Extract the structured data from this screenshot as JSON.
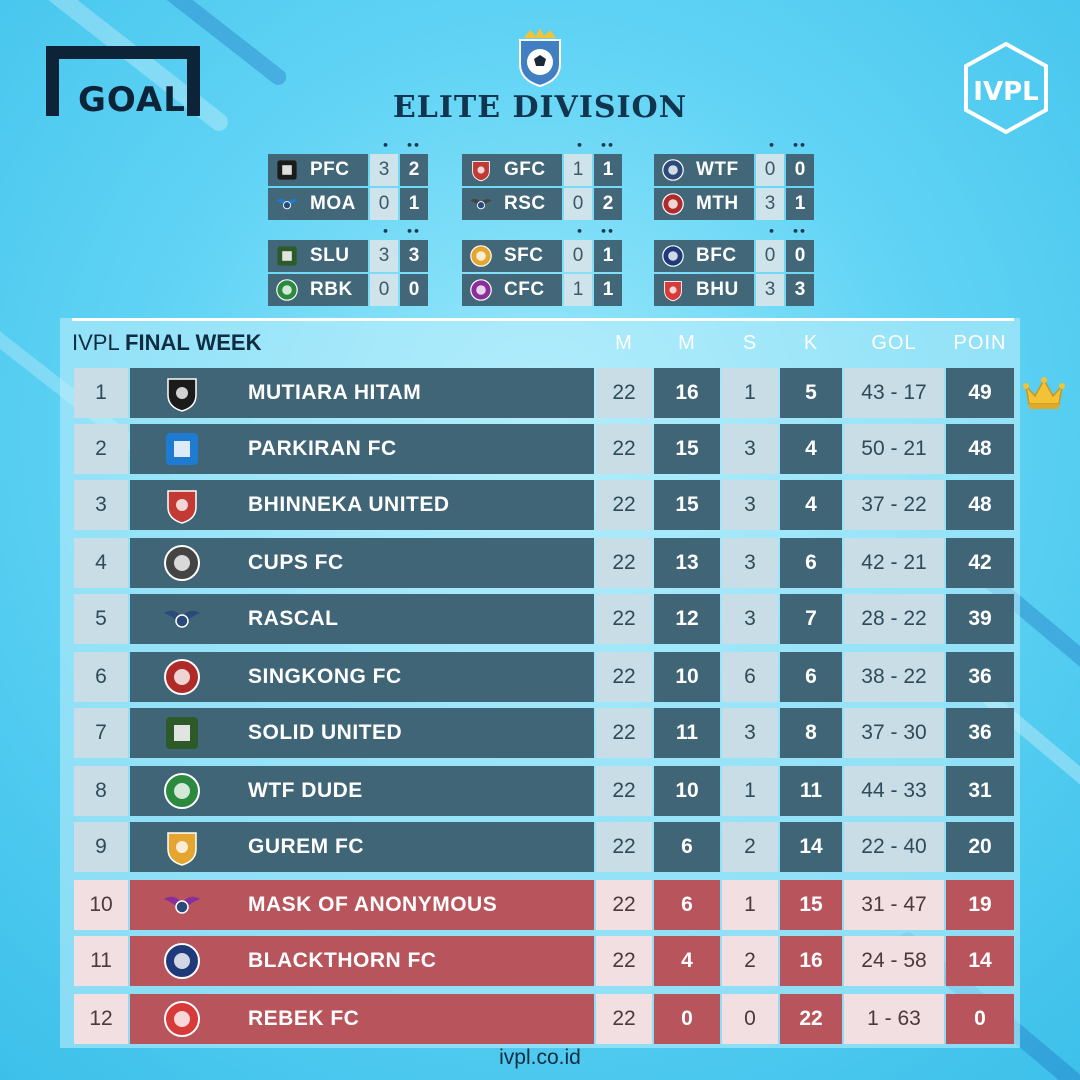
{
  "brand": {
    "goal_logo": "GOAL",
    "ivpl_logo": "IVPL"
  },
  "division_title": "ELITE DIVISION",
  "fixtures": [
    {
      "home": {
        "code": "PFC",
        "s1": "3",
        "s2": "2"
      },
      "away": {
        "code": "MOA",
        "s1": "0",
        "s2": "1"
      }
    },
    {
      "home": {
        "code": "GFC",
        "s1": "1",
        "s2": "1"
      },
      "away": {
        "code": "RSC",
        "s1": "0",
        "s2": "2"
      }
    },
    {
      "home": {
        "code": "WTF",
        "s1": "0",
        "s2": "0"
      },
      "away": {
        "code": "MTH",
        "s1": "3",
        "s2": "1"
      }
    },
    {
      "home": {
        "code": "SLU",
        "s1": "3",
        "s2": "3"
      },
      "away": {
        "code": "RBK",
        "s1": "0",
        "s2": "0"
      }
    },
    {
      "home": {
        "code": "SFC",
        "s1": "0",
        "s2": "1"
      },
      "away": {
        "code": "CFC",
        "s1": "1",
        "s2": "1"
      }
    },
    {
      "home": {
        "code": "BFC",
        "s1": "0",
        "s2": "0"
      },
      "away": {
        "code": "BHU",
        "s1": "3",
        "s2": "3"
      }
    }
  ],
  "table": {
    "heading_light": "IVPL",
    "heading_bold": "FINAL WEEK",
    "columns": {
      "m1": "M",
      "m2": "M",
      "s": "S",
      "k": "K",
      "gol": "GOL",
      "poin": "POIN"
    },
    "rows": [
      {
        "rank": "1",
        "team": "MUTIARA HITAM",
        "m1": "22",
        "m2": "16",
        "s": "1",
        "k": "5",
        "gol": "43 - 17",
        "poin": "49"
      },
      {
        "rank": "2",
        "team": "PARKIRAN FC",
        "m1": "22",
        "m2": "15",
        "s": "3",
        "k": "4",
        "gol": "50 - 21",
        "poin": "48"
      },
      {
        "rank": "3",
        "team": "BHINNEKA UNITED",
        "m1": "22",
        "m2": "15",
        "s": "3",
        "k": "4",
        "gol": "37 - 22",
        "poin": "48"
      },
      {
        "rank": "4",
        "team": "CUPS FC",
        "m1": "22",
        "m2": "13",
        "s": "3",
        "k": "6",
        "gol": "42 - 21",
        "poin": "42"
      },
      {
        "rank": "5",
        "team": "RASCAL",
        "m1": "22",
        "m2": "12",
        "s": "3",
        "k": "7",
        "gol": "28 - 22",
        "poin": "39"
      },
      {
        "rank": "6",
        "team": "SINGKONG FC",
        "m1": "22",
        "m2": "10",
        "s": "6",
        "k": "6",
        "gol": "38 - 22",
        "poin": "36"
      },
      {
        "rank": "7",
        "team": "SOLID UNITED",
        "m1": "22",
        "m2": "11",
        "s": "3",
        "k": "8",
        "gol": "37 - 30",
        "poin": "36"
      },
      {
        "rank": "8",
        "team": "WTF DUDE",
        "m1": "22",
        "m2": "10",
        "s": "1",
        "k": "11",
        "gol": "44 - 33",
        "poin": "31"
      },
      {
        "rank": "9",
        "team": "GUREM FC",
        "m1": "22",
        "m2": "6",
        "s": "2",
        "k": "14",
        "gol": "22 - 40",
        "poin": "20"
      },
      {
        "rank": "10",
        "team": "MASK OF ANONYMOUS",
        "m1": "22",
        "m2": "6",
        "s": "1",
        "k": "15",
        "gol": "31 - 47",
        "poin": "19"
      },
      {
        "rank": "11",
        "team": "BLACKTHORN FC",
        "m1": "22",
        "m2": "4",
        "s": "2",
        "k": "16",
        "gol": "24 - 58",
        "poin": "14"
      },
      {
        "rank": "12",
        "team": "REBEK FC",
        "m1": "22",
        "m2": "0",
        "s": "0",
        "k": "22",
        "gol": "1 - 63",
        "poin": "0"
      }
    ]
  },
  "footer_url": "ivpl.co.id",
  "colors": {
    "background": "#62d4f5",
    "row_dark": "#3f6577",
    "row_light": "#c8dde6",
    "relegation": "#b8545b",
    "crown": "#f2c237"
  }
}
